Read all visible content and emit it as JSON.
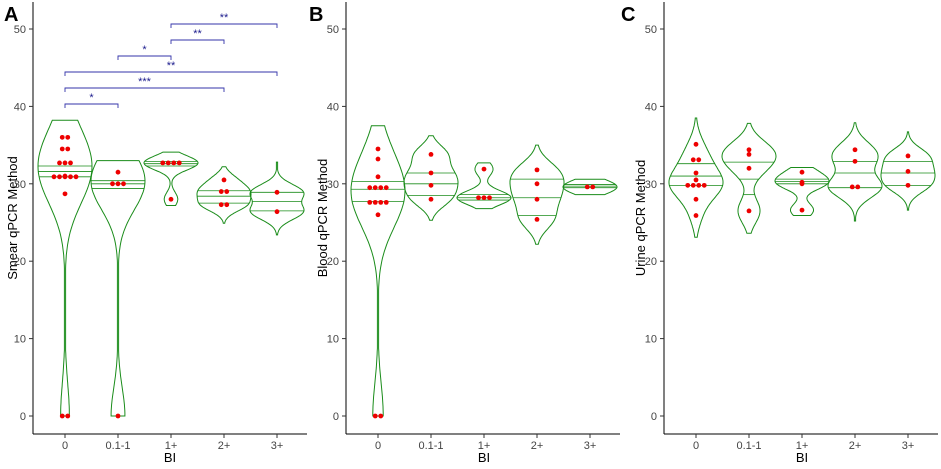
{
  "colors": {
    "violin": "#1a8c1a",
    "points": "#ee0000",
    "brackets": "#3333aa"
  },
  "chart_data": [
    {
      "type": "violin",
      "panel": "A",
      "xlabel": "BI",
      "ylabel": "Smear qPCR Method",
      "ylim": [
        0,
        50
      ],
      "yticks": [
        "0",
        "10",
        "20",
        "30",
        "40",
        "50"
      ],
      "categories": [
        "0",
        "0.1-1",
        "1+",
        "2+",
        "3+"
      ],
      "groups": [
        {
          "category": "0",
          "range": [
            0,
            38.2
          ],
          "quartiles": [
            30.9,
            31.6,
            32.3
          ],
          "points": [
            0,
            0,
            28.7,
            30.9,
            30.9,
            30.9,
            30.9,
            30.9,
            31.0,
            32.7,
            32.7,
            32.7,
            34.5,
            34.5,
            36.0,
            36.0
          ]
        },
        {
          "category": "0.1-1",
          "range": [
            0,
            33
          ],
          "quartiles": [
            29.4,
            30.0,
            30.4
          ],
          "points": [
            0,
            30.0,
            30.0,
            30.0,
            31.5
          ]
        },
        {
          "category": "1+",
          "range": [
            27.2,
            34.1
          ],
          "quartiles": [
            32.3,
            32.6,
            32.9
          ],
          "points": [
            28.0,
            32.7,
            32.7,
            32.7,
            32.7
          ]
        },
        {
          "category": "2+",
          "range": [
            24.9,
            32.2
          ],
          "quartiles": [
            27.5,
            28.4,
            29.1
          ],
          "points": [
            27.3,
            27.3,
            29.0,
            29.0,
            30.5
          ]
        },
        {
          "category": "3+",
          "range": [
            23.4,
            32.8
          ],
          "quartiles": [
            26.5,
            27.7,
            28.9
          ],
          "points": [
            26.4,
            28.9
          ]
        }
      ],
      "significance": [
        {
          "from": "0",
          "to": "0.1-1",
          "label": "*"
        },
        {
          "from": "0",
          "to": "2+",
          "label": "***"
        },
        {
          "from": "0",
          "to": "3+",
          "label": "**"
        },
        {
          "from": "0.1-1",
          "to": "1+",
          "label": "*"
        },
        {
          "from": "1+",
          "to": "2+",
          "label": "**"
        },
        {
          "from": "1+",
          "to": "3+",
          "label": "**"
        }
      ]
    },
    {
      "type": "violin",
      "panel": "B",
      "xlabel": "BI",
      "ylabel": "Blood qPCR Method",
      "ylim": [
        0,
        50
      ],
      "yticks": [
        "0",
        "10",
        "20",
        "30",
        "40",
        "50"
      ],
      "categories": [
        "0",
        "0.1-1",
        "1+",
        "2+",
        "3+"
      ],
      "groups": [
        {
          "category": "0",
          "range": [
            0,
            37.5
          ],
          "quartiles": [
            27.7,
            29.3,
            30.3
          ],
          "points": [
            0,
            0,
            26.0,
            27.6,
            27.6,
            27.6,
            27.6,
            29.5,
            29.5,
            29.5,
            29.5,
            30.9,
            33.2,
            34.5
          ]
        },
        {
          "category": "0.1-1",
          "range": [
            25.3,
            36.2
          ],
          "quartiles": [
            28.5,
            30.0,
            31.4
          ],
          "points": [
            28.0,
            29.8,
            31.4,
            33.8
          ]
        },
        {
          "category": "1+",
          "range": [
            26.8,
            32.7
          ],
          "quartiles": [
            27.9,
            28.2,
            28.6
          ],
          "points": [
            28.2,
            28.2,
            28.2,
            31.9
          ]
        },
        {
          "category": "2+",
          "range": [
            22.2,
            35.0
          ],
          "quartiles": [
            25.9,
            28.2,
            30.6
          ],
          "points": [
            25.4,
            28.0,
            30.0,
            31.8
          ]
        },
        {
          "category": "3+",
          "range": [
            28.6,
            30.6
          ],
          "quartiles": [
            29.5,
            29.7,
            29.9
          ],
          "points": [
            29.6,
            29.6
          ]
        }
      ],
      "significance": []
    },
    {
      "type": "violin",
      "panel": "C",
      "xlabel": "BI",
      "ylabel": "Urine qPCR Method",
      "ylim": [
        0,
        50
      ],
      "yticks": [
        "0",
        "10",
        "20",
        "30",
        "40",
        "50"
      ],
      "categories": [
        "0",
        "0.1-1",
        "1+",
        "2+",
        "3+"
      ],
      "groups": [
        {
          "category": "0",
          "range": [
            23.1,
            38.5
          ],
          "quartiles": [
            29.8,
            31.0,
            32.6
          ],
          "points": [
            25.9,
            28.0,
            29.8,
            29.8,
            29.8,
            29.8,
            30.5,
            31.4,
            33.1,
            33.1,
            35.1
          ]
        },
        {
          "category": "0.1-1",
          "range": [
            23.6,
            37.8
          ],
          "quartiles": [
            28.6,
            30.6,
            32.8
          ],
          "points": [
            26.5,
            32.0,
            33.8,
            34.4
          ]
        },
        {
          "category": "1+",
          "range": [
            25.9,
            32.1
          ],
          "quartiles": [
            30.0,
            30.3,
            30.6
          ],
          "points": [
            26.6,
            30.0,
            30.2,
            31.5
          ]
        },
        {
          "category": "2+",
          "range": [
            25.2,
            37.9
          ],
          "quartiles": [
            29.5,
            31.4,
            32.9
          ],
          "points": [
            29.6,
            29.6,
            32.9,
            34.4
          ]
        },
        {
          "category": "3+",
          "range": [
            26.6,
            36.7
          ],
          "quartiles": [
            29.8,
            31.4,
            32.9
          ],
          "points": [
            29.8,
            31.6,
            33.6
          ]
        }
      ],
      "significance": []
    }
  ]
}
